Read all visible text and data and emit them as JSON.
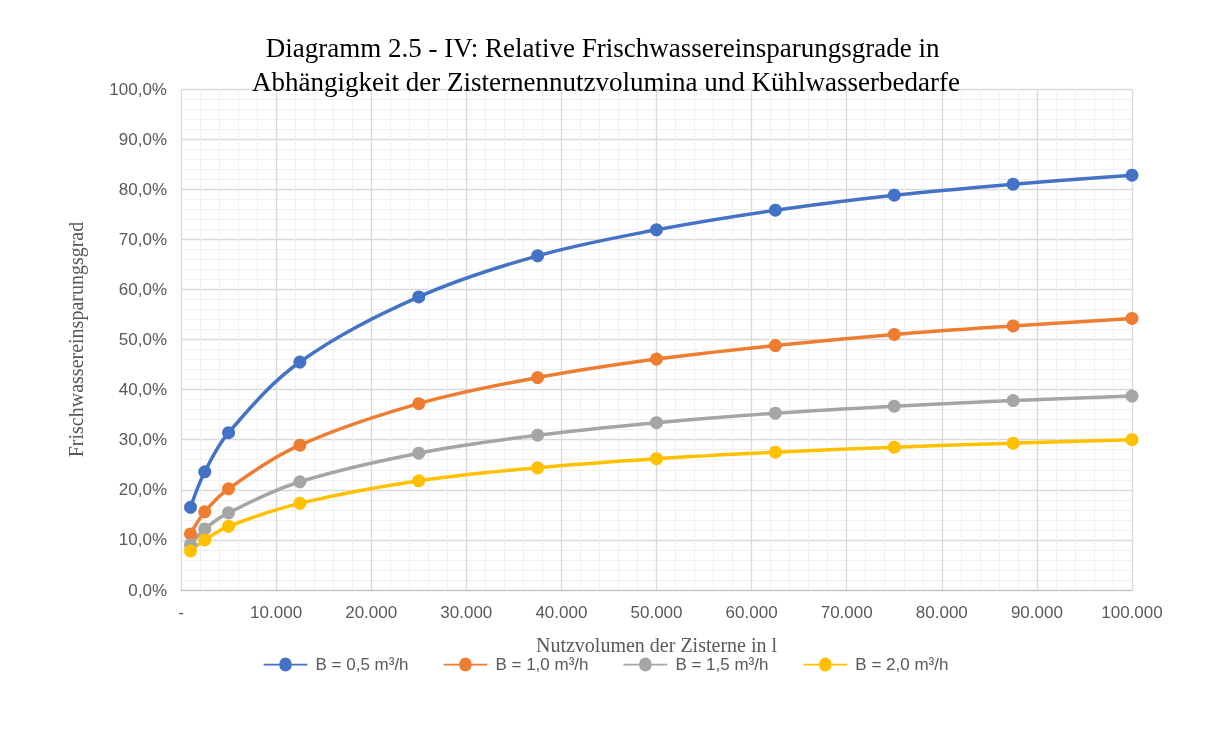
{
  "chart_data": {
    "type": "line",
    "title": "Diagramm 2.5 - IV: Relative Frischwassereinsparungsgrade in Abhängigkeit der Zisternennutzvolumina und Kühlwasserbedarfe",
    "xlabel": "Nutzvolumen der Zisterne in l",
    "ylabel": "Frischwassereinsparungsgrad",
    "x": [
      1000,
      2500,
      5000,
      12500,
      25000,
      37500,
      50000,
      62500,
      75000,
      87500,
      100000
    ],
    "series": [
      {
        "name": "B = 0,5 m³/h",
        "color": "#4472c4",
        "values": [
          16.5,
          23.6,
          31.4,
          45.5,
          58.5,
          66.7,
          71.9,
          75.8,
          78.8,
          81.0,
          82.8
        ]
      },
      {
        "name": "B = 1,0 m³/h",
        "color": "#ed7d31",
        "values": [
          11.2,
          15.6,
          20.2,
          28.9,
          37.2,
          42.4,
          46.1,
          48.8,
          51.0,
          52.7,
          54.2
        ]
      },
      {
        "name": "B = 1,5 m³/h",
        "color": "#a5a5a5",
        "values": [
          9.0,
          12.2,
          15.4,
          21.6,
          27.3,
          30.9,
          33.4,
          35.3,
          36.7,
          37.8,
          38.7
        ]
      },
      {
        "name": "B = 2,0 m³/h",
        "color": "#ffc000",
        "values": [
          7.8,
          10.0,
          12.7,
          17.3,
          21.8,
          24.4,
          26.2,
          27.5,
          28.5,
          29.3,
          30.0
        ]
      }
    ],
    "xlim": [
      0,
      100000
    ],
    "xticks": [
      {
        "value": 0,
        "label": "-"
      },
      {
        "value": 10000,
        "label": "10.000"
      },
      {
        "value": 20000,
        "label": "20.000"
      },
      {
        "value": 30000,
        "label": "30.000"
      },
      {
        "value": 40000,
        "label": "40.000"
      },
      {
        "value": 50000,
        "label": "50.000"
      },
      {
        "value": 60000,
        "label": "60.000"
      },
      {
        "value": 70000,
        "label": "70.000"
      },
      {
        "value": 80000,
        "label": "80.000"
      },
      {
        "value": 90000,
        "label": "90.000"
      },
      {
        "value": 100000,
        "label": "100.000"
      }
    ],
    "ylim": [
      0,
      100
    ],
    "yticks": [
      {
        "value": 0,
        "label": "0,0%"
      },
      {
        "value": 10,
        "label": "10,0%"
      },
      {
        "value": 20,
        "label": "20,0%"
      },
      {
        "value": 30,
        "label": "30,0%"
      },
      {
        "value": 40,
        "label": "40,0%"
      },
      {
        "value": 50,
        "label": "50,0%"
      },
      {
        "value": 60,
        "label": "60,0%"
      },
      {
        "value": 70,
        "label": "70,0%"
      },
      {
        "value": 80,
        "label": "80,0%"
      },
      {
        "value": 90,
        "label": "90,0%"
      },
      {
        "value": 100,
        "label": "100,0%"
      }
    ],
    "grid": true,
    "legend": "bottom",
    "marker": "circle",
    "line_style": "solid"
  }
}
